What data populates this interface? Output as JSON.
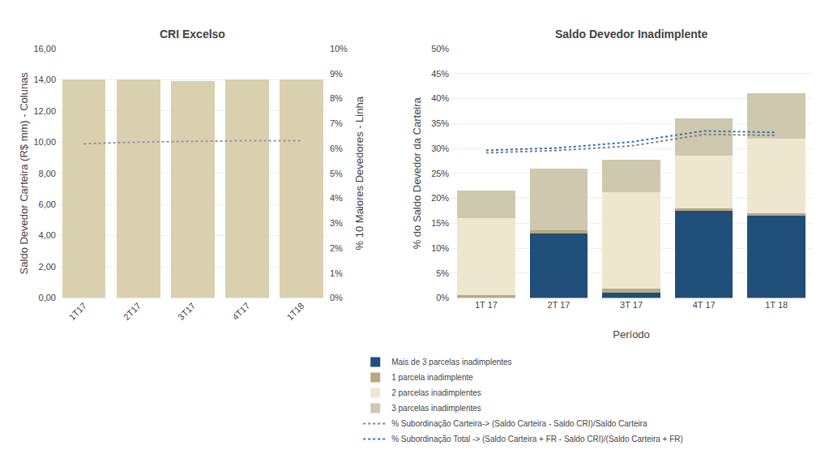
{
  "chart_data": [
    {
      "type": "bar",
      "title": "CRI Excelso",
      "categories": [
        "1T17",
        "2T17",
        "3T17",
        "4T17",
        "1T18"
      ],
      "ylabel": "Saldo Devedor Carteira (R$ mm) - Colunas",
      "y2label": "% 10 Maiores Devedores - Linha",
      "series": [
        {
          "type": "bar",
          "color": "#d9d0b0",
          "values": [
            14.0,
            14.0,
            13.9,
            14.0,
            14.0
          ]
        },
        {
          "type": "line",
          "axis": "y2",
          "color": "#999999",
          "line_style": "dotted",
          "values": [
            0.061875,
            0.0625,
            0.0628125,
            0.063125,
            0.063125
          ]
        }
      ],
      "ylim": [
        0,
        16.0
      ],
      "yticks": [
        {
          "value": 0,
          "label": "0,00"
        },
        {
          "value": 2.0,
          "label": "2,00"
        },
        {
          "value": 4.0,
          "label": "4,00"
        },
        {
          "value": 6.0,
          "label": "6,00"
        },
        {
          "value": 8.0,
          "label": "8,00"
        },
        {
          "value": 10.0,
          "label": "10,00"
        },
        {
          "value": 12.0,
          "label": "12,00"
        },
        {
          "value": 14.0,
          "label": "14,00"
        },
        {
          "value": 16.0,
          "label": "16,00"
        }
      ],
      "y2lim": [
        0,
        0.1
      ],
      "y2ticks": [
        {
          "value": 0,
          "label": "0%"
        },
        {
          "value": 0.01,
          "label": "1%"
        },
        {
          "value": 0.02,
          "label": "2%"
        },
        {
          "value": 0.03,
          "label": "3%"
        },
        {
          "value": 0.04,
          "label": "4%"
        },
        {
          "value": 0.05,
          "label": "5%"
        },
        {
          "value": 0.06,
          "label": "6%"
        },
        {
          "value": 0.07,
          "label": "7%"
        },
        {
          "value": 0.08,
          "label": "8%"
        },
        {
          "value": 0.09,
          "label": "9%"
        },
        {
          "value": 0.1,
          "label": "10%"
        }
      ],
      "grid": true
    },
    {
      "type": "bar",
      "title": "Saldo Devedor Inadimplente",
      "categories": [
        "1T 17",
        "2T 17",
        "3T 17",
        "4T 17",
        "1T 18"
      ],
      "xlabel": "Período",
      "ylabel": "% do Saldo Devedor da Carteira",
      "stacked": true,
      "series": [
        {
          "name": "Mais de 3 parcelas inadimplentes",
          "type": "bar",
          "color": "#1f4e79",
          "values": [
            0.0,
            0.13,
            0.01,
            0.175,
            0.165
          ]
        },
        {
          "name": "1 parcela inadimplente",
          "type": "bar",
          "color": "#b8aa80",
          "values": [
            0.005,
            0.005,
            0.008,
            0.005,
            0.005
          ]
        },
        {
          "name": "2 parcelas inadimplentes",
          "type": "bar",
          "color": "#ede7d0",
          "values": [
            0.155,
            0.0,
            0.195,
            0.105,
            0.15
          ]
        },
        {
          "name": "3 parcelas inadimplentes",
          "type": "bar",
          "color": "#cec8af",
          "values": [
            0.055,
            0.125,
            0.065,
            0.075,
            0.09
          ]
        },
        {
          "name": "% Subordinação Carteira-> (Saldo Carteira - Saldo CRI)/Saldo Carteira",
          "type": "line",
          "color": "#808080",
          "line_style": "dotted",
          "values": [
            0.291,
            0.296,
            0.305,
            0.328,
            0.326
          ]
        },
        {
          "name": "% Subordinação Total -> (Saldo Carteira + FR - Saldo CRI)/(Saldo Carteira + FR)",
          "type": "line",
          "color": "#2e75b6",
          "line_style": "dotted",
          "values": [
            0.296,
            0.301,
            0.313,
            0.335,
            0.332
          ]
        }
      ],
      "ylim": [
        0,
        0.5
      ],
      "yticks": [
        {
          "value": 0,
          "label": "0%"
        },
        {
          "value": 0.05,
          "label": "5%"
        },
        {
          "value": 0.1,
          "label": "10%"
        },
        {
          "value": 0.15,
          "label": "15%"
        },
        {
          "value": 0.2,
          "label": "20%"
        },
        {
          "value": 0.25,
          "label": "25%"
        },
        {
          "value": 0.3,
          "label": "30%"
        },
        {
          "value": 0.35,
          "label": "35%"
        },
        {
          "value": 0.4,
          "label": "40%"
        },
        {
          "value": 0.45,
          "label": "45%"
        },
        {
          "value": 0.5,
          "label": "50%"
        }
      ],
      "grid": true,
      "legend": "bottom"
    }
  ]
}
